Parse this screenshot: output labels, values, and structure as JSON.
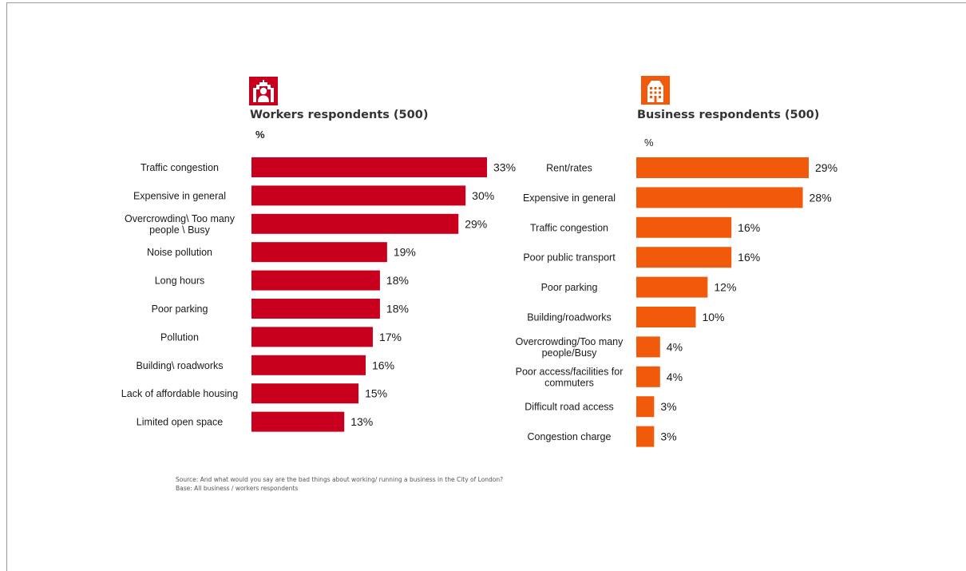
{
  "colors": {
    "workers": "#c8001e",
    "business": "#f05a0a"
  },
  "workers": {
    "icon": "worker-building-icon",
    "title": "Workers respondents (500)",
    "unit": "%"
  },
  "business": {
    "icon": "office-building-icon",
    "title": "Business respondents (500)",
    "unit": "%"
  },
  "footnote": {
    "source": "Source: And what would you say are the bad things about working/ running a business in the City of London?",
    "base": "Base:   All business / workers respondents"
  },
  "chart_data": [
    {
      "type": "bar",
      "orientation": "horizontal",
      "categories": [
        "Traffic congestion",
        "Expensive in general",
        "Overcrowding\\ Too many people \\ Busy",
        "Noise pollution",
        "Long hours",
        "Poor parking",
        "Pollution",
        "Building\\ roadworks",
        "Lack of affordable housing",
        "Limited open space"
      ],
      "category_lines": [
        [
          "Traffic congestion"
        ],
        [
          "Expensive in general"
        ],
        [
          "Overcrowding\\ Too many",
          "people \\ Busy"
        ],
        [
          "Noise pollution"
        ],
        [
          "Long hours"
        ],
        [
          "Poor parking"
        ],
        [
          "Pollution"
        ],
        [
          "Building\\ roadworks"
        ],
        [
          "Lack of affordable housing"
        ],
        [
          "Limited open space"
        ]
      ],
      "values": [
        33,
        30,
        29,
        19,
        18,
        18,
        17,
        16,
        15,
        13
      ],
      "value_labels": [
        "33%",
        "30%",
        "29%",
        "19%",
        "18%",
        "18%",
        "17%",
        "16%",
        "15%",
        "13%"
      ],
      "title": "Workers respondents (500)",
      "xlabel": "%",
      "xlim": [
        0,
        33
      ]
    },
    {
      "type": "bar",
      "orientation": "horizontal",
      "categories": [
        "Rent/rates",
        "Expensive in general",
        "Traffic congestion",
        "Poor public transport",
        "Poor parking",
        "Building/roadworks",
        "Overcrowding/Too many people/Busy",
        "Poor access/facilities for commuters",
        "Difficult road access",
        "Congestion charge"
      ],
      "category_lines": [
        [
          "Rent/rates"
        ],
        [
          "Expensive in general"
        ],
        [
          "Traffic congestion"
        ],
        [
          "Poor public transport"
        ],
        [
          "Poor parking"
        ],
        [
          "Building/roadworks"
        ],
        [
          "Overcrowding/Too many",
          "people/Busy"
        ],
        [
          "Poor access/facilities for",
          "commuters"
        ],
        [
          "Difficult road access"
        ],
        [
          "Congestion charge"
        ]
      ],
      "values": [
        29,
        28,
        16,
        16,
        12,
        10,
        4,
        4,
        3,
        3
      ],
      "value_labels": [
        "29%",
        "28%",
        "16%",
        "16%",
        "12%",
        "10%",
        "4%",
        "4%",
        "3%",
        "3%"
      ],
      "title": "Business respondents (500)",
      "xlabel": "%",
      "xlim": [
        0,
        29
      ]
    }
  ]
}
